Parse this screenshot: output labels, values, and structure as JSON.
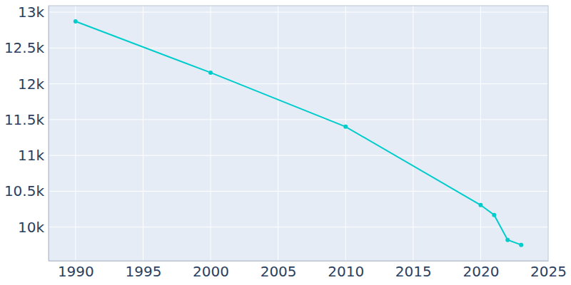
{
  "chart_data": {
    "type": "line",
    "x": [
      1990,
      2000,
      2010,
      2020,
      2021,
      2022,
      2023
    ],
    "values": [
      12871,
      12156,
      11401,
      10308,
      10169,
      9821,
      9752
    ],
    "color": "#00cccc",
    "marker": "circle",
    "xlim": [
      1988,
      2025
    ],
    "xticks": [
      1990,
      1995,
      2000,
      2005,
      2010,
      2015,
      2020,
      2025
    ],
    "ylim": [
      9530,
      13090
    ],
    "yticks": [
      {
        "value": 10000,
        "label": "10k"
      },
      {
        "value": 10500,
        "label": "10.5k"
      },
      {
        "value": 11000,
        "label": "11k"
      },
      {
        "value": 11500,
        "label": "11.5k"
      },
      {
        "value": 12000,
        "label": "12k"
      },
      {
        "value": 12500,
        "label": "12.5k"
      },
      {
        "value": 13000,
        "label": "13k"
      }
    ],
    "grid": true
  }
}
